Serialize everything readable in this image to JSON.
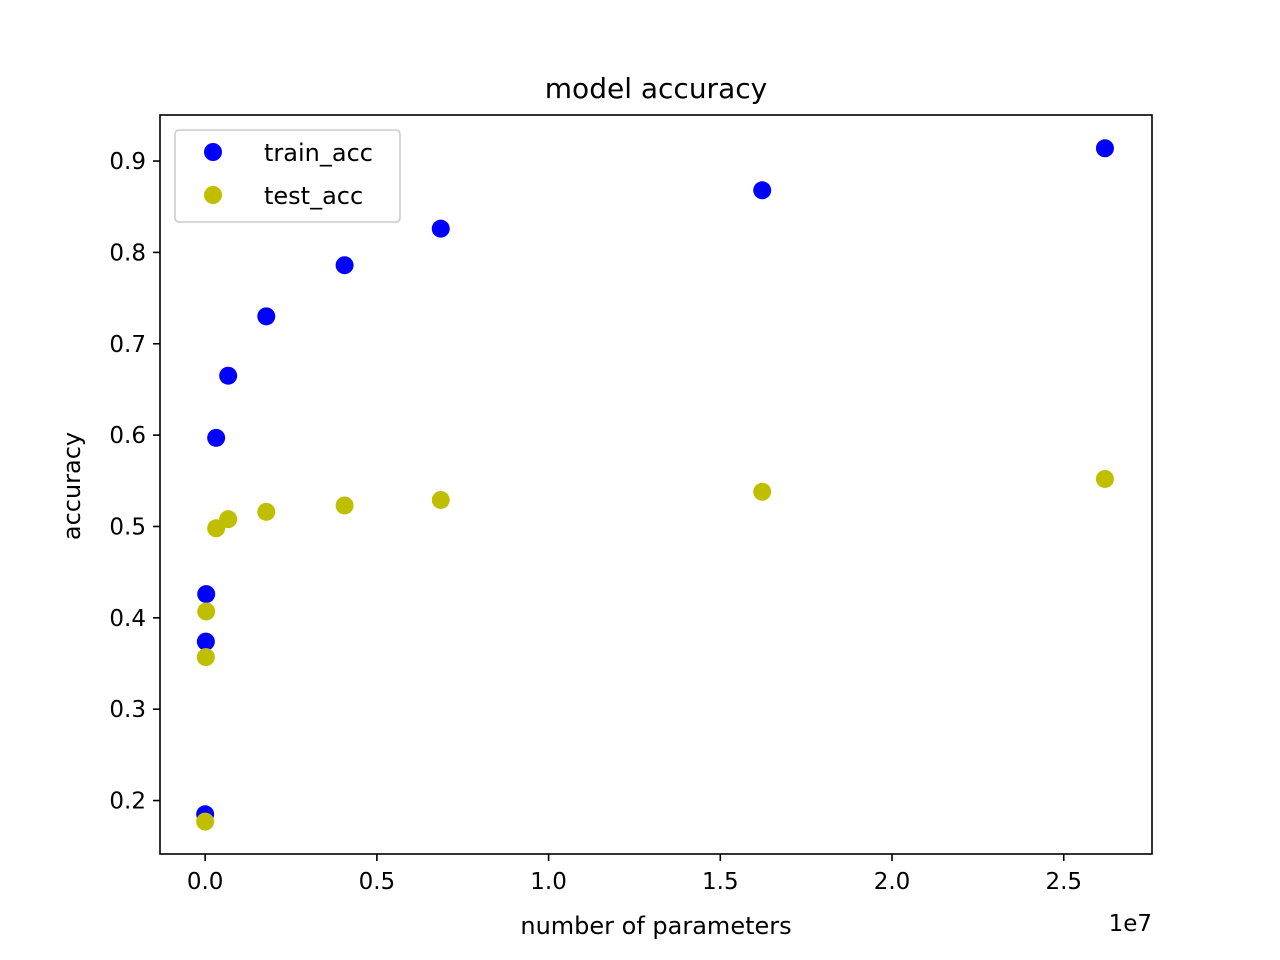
{
  "chart_data": {
    "type": "scatter",
    "title": "model accuracy",
    "xlabel": "number of parameters",
    "ylabel": "accuracy",
    "x_offset_label": "1e7",
    "xlim": [
      -1315000,
      27570000
    ],
    "ylim": [
      0.1415,
      0.9504
    ],
    "x_ticks": [
      {
        "value": 0,
        "label": "0.0"
      },
      {
        "value": 5000000,
        "label": "0.5"
      },
      {
        "value": 10000000,
        "label": "1.0"
      },
      {
        "value": 15000000,
        "label": "1.5"
      },
      {
        "value": 20000000,
        "label": "2.0"
      },
      {
        "value": 25000000,
        "label": "2.5"
      }
    ],
    "y_ticks": [
      {
        "value": 0.2,
        "label": "0.2"
      },
      {
        "value": 0.3,
        "label": "0.3"
      },
      {
        "value": 0.4,
        "label": "0.4"
      },
      {
        "value": 0.5,
        "label": "0.5"
      },
      {
        "value": 0.6,
        "label": "0.6"
      },
      {
        "value": 0.7,
        "label": "0.7"
      },
      {
        "value": 0.8,
        "label": "0.8"
      },
      {
        "value": 0.9,
        "label": "0.9"
      }
    ],
    "grid": false,
    "legend_position": "top-left",
    "series": [
      {
        "name": "train_acc",
        "color": "#0000ff",
        "points": [
          {
            "x": 0,
            "y": 0.185
          },
          {
            "x": 20000,
            "y": 0.374
          },
          {
            "x": 30000,
            "y": 0.426
          },
          {
            "x": 320000,
            "y": 0.597
          },
          {
            "x": 670000,
            "y": 0.665
          },
          {
            "x": 1780000,
            "y": 0.73
          },
          {
            "x": 4060000,
            "y": 0.786
          },
          {
            "x": 6860000,
            "y": 0.826
          },
          {
            "x": 16220000,
            "y": 0.868
          },
          {
            "x": 26200000,
            "y": 0.914
          }
        ]
      },
      {
        "name": "test_acc",
        "color": "#bfbf00",
        "points": [
          {
            "x": 0,
            "y": 0.177
          },
          {
            "x": 20000,
            "y": 0.357
          },
          {
            "x": 30000,
            "y": 0.407
          },
          {
            "x": 320000,
            "y": 0.498
          },
          {
            "x": 670000,
            "y": 0.508
          },
          {
            "x": 1780000,
            "y": 0.516
          },
          {
            "x": 4060000,
            "y": 0.523
          },
          {
            "x": 6860000,
            "y": 0.529
          },
          {
            "x": 16220000,
            "y": 0.538
          },
          {
            "x": 26200000,
            "y": 0.552
          }
        ]
      }
    ]
  }
}
